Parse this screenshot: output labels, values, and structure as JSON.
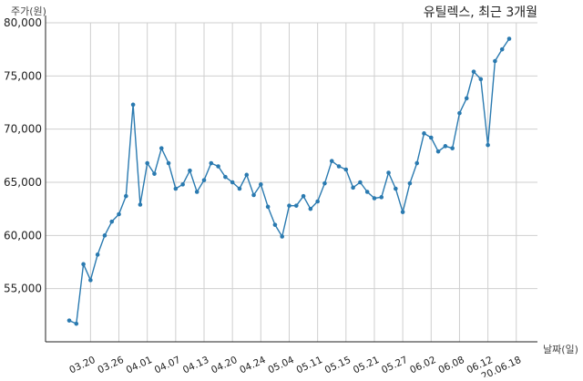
{
  "chart_data": {
    "type": "line",
    "title": "유틸렉스, 최근 3개월",
    "ylabel": "주가(원)",
    "xlabel": "날짜(일)",
    "ylim": [
      50000,
      80000
    ],
    "yticks": [
      55000,
      60000,
      65000,
      70000,
      75000,
      80000
    ],
    "ytick_labels": [
      "55,000",
      "60,000",
      "65,000",
      "70,000",
      "75,000",
      "80,000"
    ],
    "grid": true,
    "color": "#2a7ab0",
    "xtick_labels": [
      "03.20",
      "03.26",
      "04.01",
      "04.07",
      "04.13",
      "04.20",
      "04.24",
      "05.04",
      "05.11",
      "05.15",
      "05.21",
      "05.27",
      "06.02",
      "06.08",
      "06.12",
      "20.06.18"
    ],
    "xtick_positions": [
      3,
      7,
      11,
      15,
      19,
      23,
      27,
      31,
      35,
      39,
      43,
      47,
      51,
      55,
      59,
      63
    ],
    "series": [
      {
        "values": [
          52000,
          51700,
          57300,
          55800,
          58200,
          60000,
          61300,
          62000,
          63700,
          72300,
          62900,
          66800,
          65800,
          68200,
          66800,
          64400,
          64800,
          66100,
          64100,
          65200,
          66800,
          66500,
          65500,
          65000,
          64400,
          65700,
          63800,
          64800,
          62700,
          61000,
          59900,
          62800,
          62800,
          63700,
          62500,
          63200,
          64900,
          67000,
          66500,
          66200,
          64500,
          65000,
          64100,
          63500,
          63600,
          65900,
          64400,
          62200,
          64900,
          66800,
          69600,
          69200,
          67900,
          68400,
          68200,
          71500,
          72900,
          75400,
          74700,
          68500,
          76400,
          77500,
          78500
        ]
      }
    ]
  }
}
